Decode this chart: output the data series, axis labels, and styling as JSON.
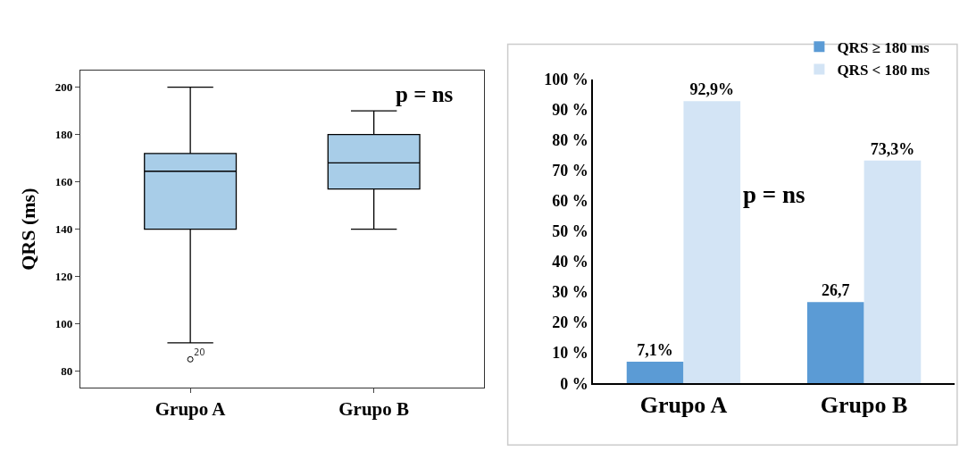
{
  "chart_data": [
    {
      "type": "box",
      "ylabel": "QRS (ms)",
      "categories": [
        "Grupo A",
        "Grupo B"
      ],
      "boxes": [
        {
          "low": 92,
          "q1": 140,
          "median": 164.5,
          "q3": 172,
          "high": 200,
          "outliers": [
            85
          ]
        },
        {
          "low": 140,
          "q1": 157,
          "median": 168,
          "q3": 180,
          "high": 190
        }
      ],
      "color": "#a8cde8",
      "ylim": [
        73,
        207
      ],
      "yticks": [
        80,
        100,
        120,
        140,
        160,
        180,
        200
      ],
      "annotations": [
        "p = ns",
        "20"
      ]
    },
    {
      "type": "bar",
      "categories": [
        "Grupo A",
        "Grupo B"
      ],
      "series": [
        {
          "name": "QRS ≥ 180 ms",
          "color": "#5b9bd5",
          "values": [
            7.1,
            26.7
          ],
          "value_labels": [
            "7,1%",
            "26,7"
          ]
        },
        {
          "name": "QRS < 180 ms",
          "color": "#d3e4f5",
          "values": [
            92.9,
            73.3
          ],
          "value_labels": [
            "92,9%",
            "73,3%"
          ]
        }
      ],
      "ylim": [
        0,
        100
      ],
      "yticks": [
        {
          "value": 0,
          "label": "0 %"
        },
        {
          "value": 10,
          "label": "10 %"
        },
        {
          "value": 20,
          "label": "20 %"
        },
        {
          "value": 30,
          "label": "30 %"
        },
        {
          "value": 40,
          "label": "40 %"
        },
        {
          "value": 50,
          "label": "50 %"
        },
        {
          "value": 60,
          "label": "60 %"
        },
        {
          "value": 70,
          "label": "70 %"
        },
        {
          "value": 80,
          "label": "80 %"
        },
        {
          "value": 90,
          "label": "90 %"
        },
        {
          "value": 100,
          "label": "100 %"
        }
      ],
      "legend": "top right",
      "annotations": [
        "p = ns"
      ]
    }
  ]
}
